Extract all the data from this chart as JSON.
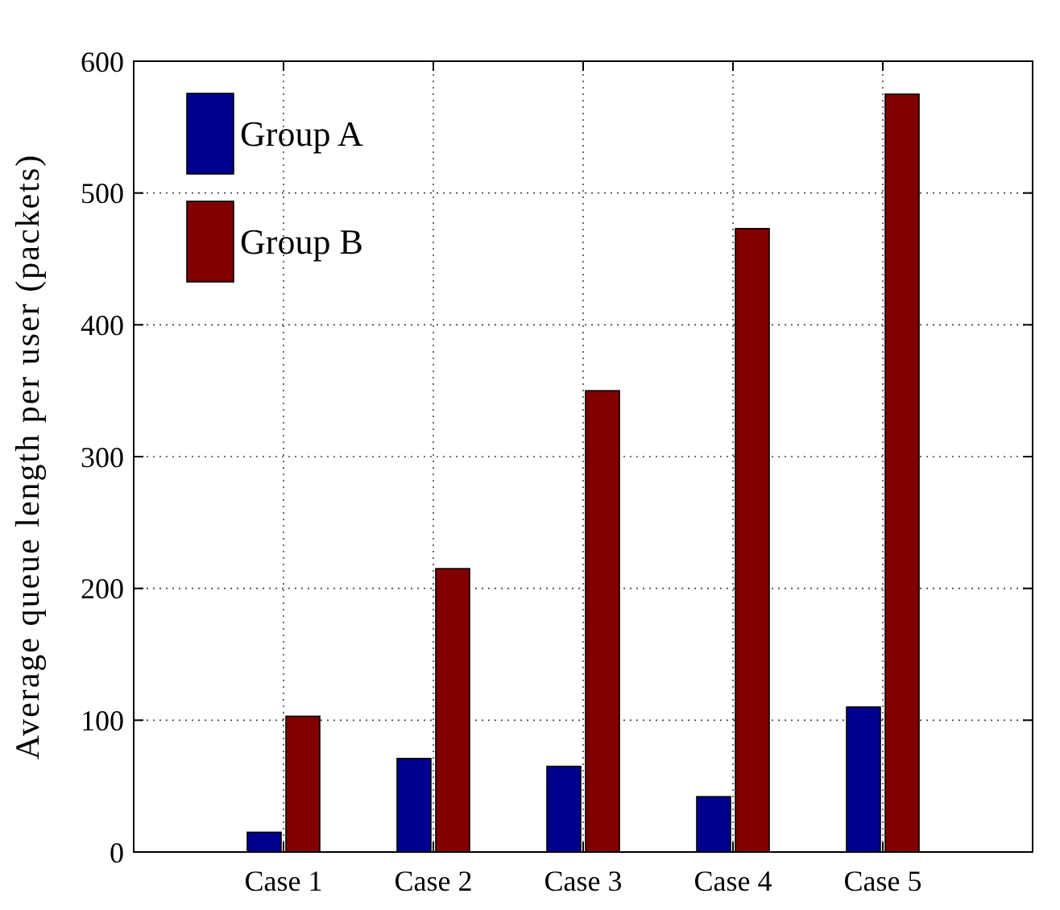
{
  "chart_data": {
    "type": "bar",
    "ylabel": "Average queue length per user (packets)",
    "categories": [
      "Case 1",
      "Case 2",
      "Case 3",
      "Case 4",
      "Case 5"
    ],
    "series": [
      {
        "name": "Group A",
        "color": "#00008f",
        "values": [
          15,
          71,
          65,
          42,
          110
        ]
      },
      {
        "name": "Group B",
        "color": "#800000",
        "values": [
          103,
          215,
          350,
          473,
          575
        ]
      }
    ],
    "ylim": [
      0,
      600
    ],
    "yticks": [
      0,
      100,
      200,
      300,
      400,
      500,
      600
    ],
    "grid": true,
    "legend": "top left"
  }
}
